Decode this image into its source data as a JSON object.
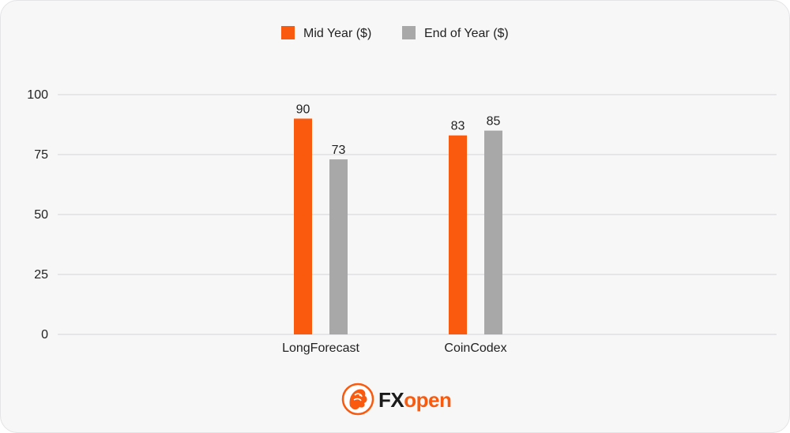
{
  "chart_data": {
    "type": "bar",
    "categories": [
      "LongForecast",
      "CoinCodex"
    ],
    "series": [
      {
        "name": "Mid Year ($)",
        "values": [
          90,
          83
        ],
        "color": "#f95a0e"
      },
      {
        "name": "End of Year ($)",
        "values": [
          73,
          85
        ],
        "color": "#a8a8a8"
      }
    ],
    "ylim": [
      0,
      100
    ],
    "yticks": [
      0,
      25,
      50,
      75,
      100
    ],
    "title": "",
    "xlabel": "",
    "ylabel": "",
    "grid": true,
    "legend": "top-center"
  },
  "brand": {
    "name_fx": "FX",
    "name_open": "open",
    "primary_color": "#f95a0e",
    "dark_color": "#1a1a1a",
    "icon": "lion-logo-icon"
  }
}
